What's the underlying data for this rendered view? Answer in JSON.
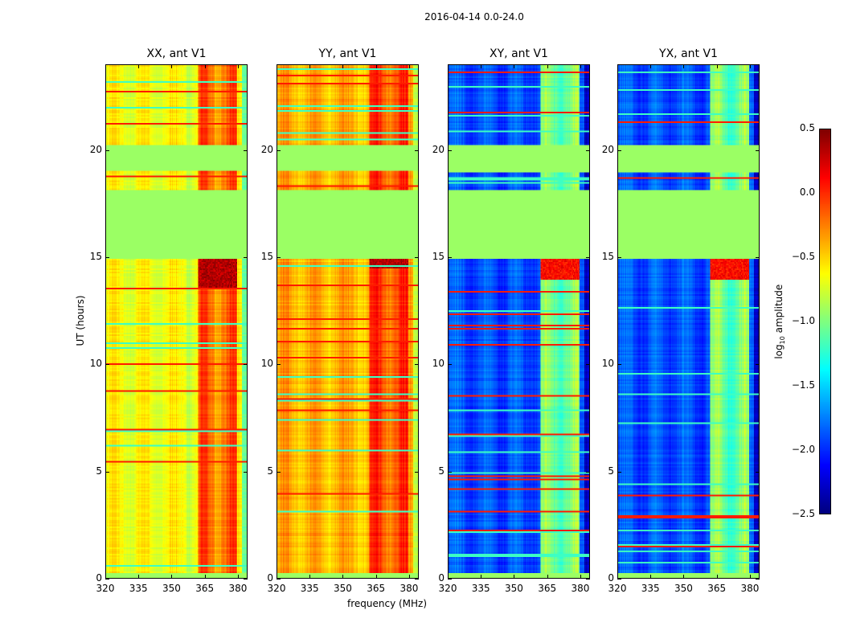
{
  "suptitle": "2016-04-14 0.0-24.0",
  "xlabel": "frequency (MHz)",
  "ylabel": "UT (hours)",
  "colorbar": {
    "label_prefix": "log",
    "label_sub": "10",
    "label_suffix": " amplitude",
    "range": [
      -2.5,
      0.5
    ],
    "ticks": [
      "0.5",
      "0.0",
      "−0.5",
      "−1.0",
      "−1.5",
      "−2.0",
      "−2.5"
    ],
    "tick_values": [
      0.5,
      0.0,
      -0.5,
      -1.0,
      -1.5,
      -2.0,
      -2.5
    ],
    "colormap": "jet"
  },
  "chart_data": [
    {
      "type": "heatmap",
      "title": "XX, ant V1",
      "xlim": [
        320,
        384.4
      ],
      "ylim": [
        0,
        24
      ],
      "xticks": [
        "320",
        "335",
        "350",
        "365",
        "380"
      ],
      "xtick_values": [
        320,
        335,
        350,
        365,
        380
      ],
      "yticks": [
        "0",
        "5",
        "10",
        "15",
        "20"
      ],
      "ytick_values": [
        0,
        5,
        10,
        15,
        20
      ],
      "base_log_amp": -0.65,
      "band_mhz": [
        362,
        380
      ],
      "band_log_amp": -0.2,
      "flagged_hours": [
        [
          15.0,
          18.2
        ],
        [
          19.1,
          20.3
        ]
      ],
      "flag_log_amp": -0.92,
      "burst_hours": [
        13.6,
        15.0
      ],
      "burst_log_amp": 0.35
    },
    {
      "type": "heatmap",
      "title": "YY, ant V1",
      "xlim": [
        320,
        384.4
      ],
      "ylim": [
        0,
        24
      ],
      "xticks": [
        "320",
        "335",
        "350",
        "365",
        "380"
      ],
      "xtick_values": [
        320,
        335,
        350,
        365,
        380
      ],
      "yticks": [
        "0",
        "5",
        "10",
        "15",
        "20"
      ],
      "ytick_values": [
        0,
        5,
        10,
        15,
        20
      ],
      "base_log_amp": -0.4,
      "band_mhz": [
        362,
        380
      ],
      "band_log_amp": -0.1,
      "flagged_hours": [
        [
          15.0,
          18.2
        ],
        [
          19.1,
          20.3
        ]
      ],
      "flag_log_amp": -0.92,
      "burst_hours": [
        14.5,
        15.0
      ],
      "burst_log_amp": 0.35
    },
    {
      "type": "heatmap",
      "title": "XY, ant V1",
      "xlim": [
        320,
        384.4
      ],
      "ylim": [
        0,
        24
      ],
      "xticks": [
        "320",
        "335",
        "350",
        "365",
        "380"
      ],
      "xtick_values": [
        320,
        335,
        350,
        365,
        380
      ],
      "yticks": [
        "0",
        "5",
        "10",
        "15",
        "20"
      ],
      "ytick_values": [
        0,
        5,
        10,
        15,
        20
      ],
      "base_log_amp": -1.9,
      "band_mhz": [
        362,
        380
      ],
      "band_log_amp": -1.05,
      "flagged_hours": [
        [
          15.0,
          18.2
        ],
        [
          19.0,
          20.3
        ]
      ],
      "flag_log_amp": -0.92,
      "burst_hours": [
        14.0,
        15.0
      ],
      "burst_log_amp": 0.1
    },
    {
      "type": "heatmap",
      "title": "YX, ant V1",
      "xlim": [
        320,
        384.4
      ],
      "ylim": [
        0,
        24
      ],
      "xticks": [
        "320",
        "335",
        "350",
        "365",
        "380"
      ],
      "xtick_values": [
        320,
        335,
        350,
        365,
        380
      ],
      "yticks": [
        "0",
        "5",
        "10",
        "15",
        "20"
      ],
      "ytick_values": [
        0,
        5,
        10,
        15,
        20
      ],
      "base_log_amp": -1.9,
      "band_mhz": [
        362,
        380
      ],
      "band_log_amp": -1.05,
      "flagged_hours": [
        [
          15.0,
          18.2
        ],
        [
          19.0,
          20.3
        ]
      ],
      "flag_log_amp": -0.92,
      "burst_hours": [
        14.0,
        15.0
      ],
      "burst_log_amp": 0.1
    }
  ]
}
